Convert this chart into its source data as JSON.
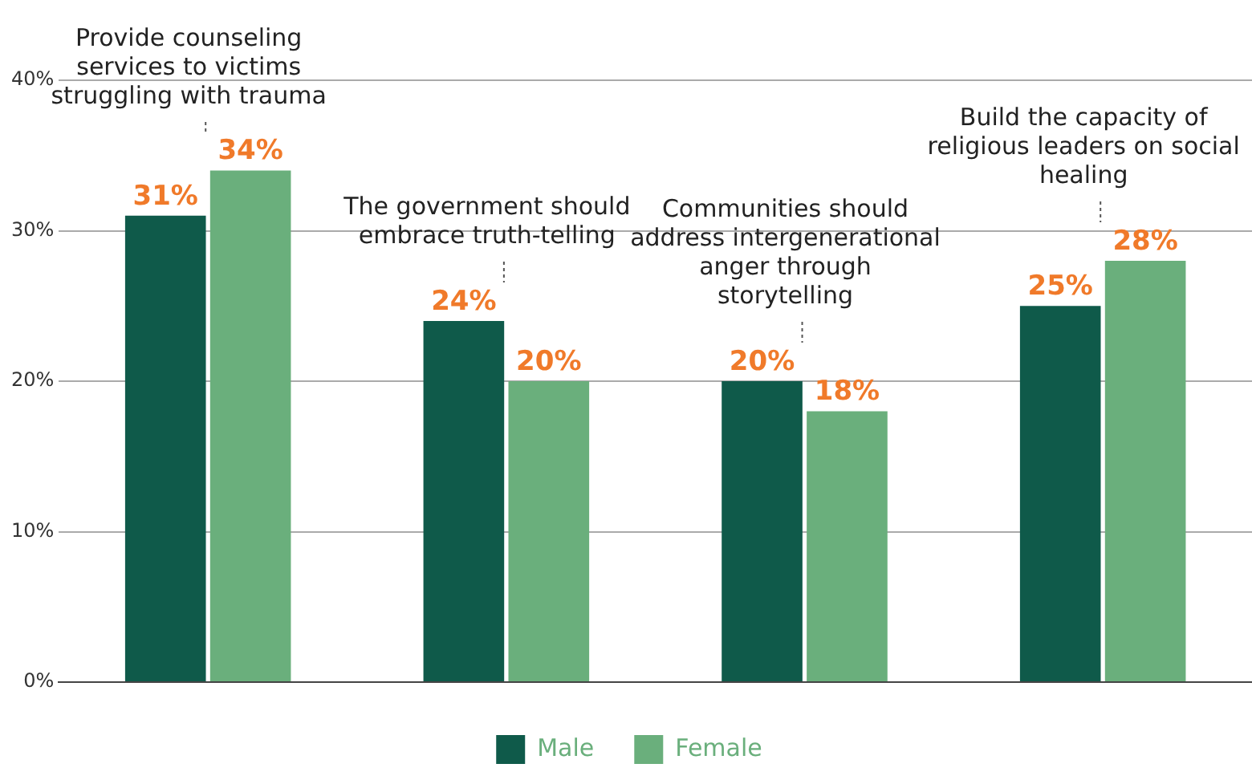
{
  "chart_data": {
    "type": "bar",
    "categories": [
      "Provide counseling services to victims struggling with trauma",
      "The government should embrace truth-telling",
      "Communities should address intergenerational anger through storytelling",
      "Build the capacity of religious leaders on social healing"
    ],
    "series": [
      {
        "name": "Male",
        "color": "#0f5a4a",
        "values": [
          31,
          24,
          20,
          25
        ],
        "value_labels": [
          "31%",
          "24%",
          "20%",
          "25%"
        ]
      },
      {
        "name": "Female",
        "color": "#6aaf7c",
        "values": [
          34,
          20,
          18,
          28
        ],
        "value_labels": [
          "34%",
          "20%",
          "18%",
          "28%"
        ]
      }
    ],
    "ylim": [
      0,
      40
    ],
    "yticks": [
      {
        "value": 0,
        "label": "0%"
      },
      {
        "value": 10,
        "label": "10%"
      },
      {
        "value": 20,
        "label": "20%"
      },
      {
        "value": 30,
        "label": "30%"
      },
      {
        "value": 40,
        "label": "40%"
      }
    ],
    "grid": "y",
    "legend": "bottom"
  }
}
